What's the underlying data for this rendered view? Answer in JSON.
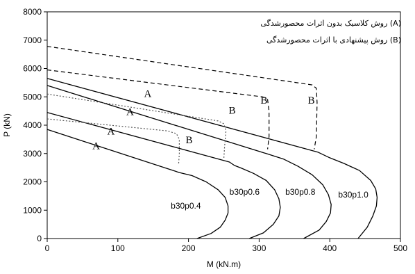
{
  "chart_data": {
    "type": "line",
    "title": "",
    "xlabel": "M (kN.m)",
    "ylabel": "P (kN)",
    "xlim": [
      0,
      500
    ],
    "ylim": [
      0,
      8000
    ],
    "x_ticks": [
      0,
      100,
      200,
      300,
      400,
      500
    ],
    "y_ticks": [
      0,
      1000,
      2000,
      3000,
      4000,
      5000,
      6000,
      7000,
      8000
    ],
    "grid": false,
    "legend": {
      "placement": "top-right",
      "entries": [
        {
          "marker": "(A)",
          "text": "روش کلاسیک بدون اثرات محصورشدگی"
        },
        {
          "marker": "(B)",
          "text": "روش پیشنهادی با اثرات محصورشدگی"
        }
      ]
    },
    "series": [
      {
        "name": "A",
        "method": "A",
        "group": "b30p0.4",
        "style": "solid",
        "points": [
          [
            0,
            3850
          ],
          [
            187,
            2330
          ],
          [
            205,
            2220
          ],
          [
            225,
            2000
          ],
          [
            242,
            1720
          ],
          [
            252,
            1450
          ],
          [
            256,
            1150
          ],
          [
            256,
            900
          ],
          [
            252,
            650
          ],
          [
            245,
            400
          ],
          [
            232,
            180
          ],
          [
            212,
            0
          ]
        ]
      },
      {
        "name": "A",
        "method": "A",
        "group": "b30p0.6",
        "style": "solid",
        "points": [
          [
            0,
            4450
          ],
          [
            258,
            2700
          ],
          [
            265,
            2580
          ],
          [
            275,
            2480
          ],
          [
            292,
            2300
          ],
          [
            310,
            2050
          ],
          [
            322,
            1720
          ],
          [
            328,
            1400
          ],
          [
            330,
            1100
          ],
          [
            328,
            800
          ],
          [
            320,
            500
          ],
          [
            306,
            200
          ],
          [
            286,
            0
          ]
        ]
      },
      {
        "name": "A",
        "method": "A",
        "group": "b30p0.8",
        "style": "solid",
        "points": [
          [
            0,
            5400
          ],
          [
            310,
            3000
          ],
          [
            335,
            2800
          ],
          [
            355,
            2550
          ],
          [
            375,
            2250
          ],
          [
            390,
            1900
          ],
          [
            398,
            1550
          ],
          [
            402,
            1200
          ],
          [
            401,
            900
          ],
          [
            395,
            600
          ],
          [
            385,
            300
          ],
          [
            363,
            0
          ]
        ]
      },
      {
        "name": "A",
        "method": "A",
        "group": "b30p1.0",
        "style": "solid",
        "points": [
          [
            0,
            5650
          ],
          [
            383,
            3050
          ],
          [
            400,
            2850
          ],
          [
            420,
            2650
          ],
          [
            442,
            2400
          ],
          [
            458,
            2050
          ],
          [
            465,
            1750
          ],
          [
            467,
            1450
          ],
          [
            466,
            1150
          ],
          [
            461,
            800
          ],
          [
            453,
            400
          ],
          [
            440,
            0
          ]
        ]
      },
      {
        "name": "B",
        "method": "B",
        "group": "b30p0.4",
        "style": "dotted",
        "points": [
          [
            0,
            4220
          ],
          [
            170,
            3800
          ],
          [
            183,
            3700
          ],
          [
            187,
            3500
          ],
          [
            187,
            3000
          ],
          [
            186,
            2600
          ]
        ]
      },
      {
        "name": "B",
        "method": "B",
        "group": "b30p0.6",
        "style": "dotted",
        "points": [
          [
            0,
            5100
          ],
          [
            242,
            4150
          ],
          [
            250,
            4050
          ],
          [
            253,
            3800
          ],
          [
            251,
            3200
          ],
          [
            250,
            2800
          ]
        ]
      },
      {
        "name": "B",
        "method": "B",
        "group": "b30p0.8",
        "style": "dashed",
        "points": [
          [
            0,
            5950
          ],
          [
            305,
            5000
          ],
          [
            312,
            4900
          ],
          [
            314,
            4500
          ],
          [
            314,
            3600
          ],
          [
            312,
            3150
          ]
        ]
      },
      {
        "name": "B",
        "method": "B",
        "group": "b30p1.0",
        "style": "dashed",
        "points": [
          [
            0,
            6780
          ],
          [
            375,
            5420
          ],
          [
            381,
            5300
          ],
          [
            382,
            4800
          ],
          [
            381,
            3600
          ],
          [
            378,
            3150
          ]
        ]
      }
    ],
    "annotations": [
      {
        "text": "A",
        "x": 64,
        "y": 3150
      },
      {
        "text": "A",
        "x": 85,
        "y": 3670
      },
      {
        "text": "A",
        "x": 112,
        "y": 4360
      },
      {
        "text": "A",
        "x": 137,
        "y": 5000
      },
      {
        "text": "B",
        "x": 196,
        "y": 3360
      },
      {
        "text": "B",
        "x": 257,
        "y": 4400
      },
      {
        "text": "B",
        "x": 302,
        "y": 4760
      },
      {
        "text": "B",
        "x": 369,
        "y": 4760
      },
      {
        "text": "b30p0.4",
        "x": 175,
        "y": 1050
      },
      {
        "text": "b30p0.6",
        "x": 258,
        "y": 1550
      },
      {
        "text": "b30p0.8",
        "x": 337,
        "y": 1550
      },
      {
        "text": "b30p1.0",
        "x": 412,
        "y": 1450
      }
    ]
  }
}
